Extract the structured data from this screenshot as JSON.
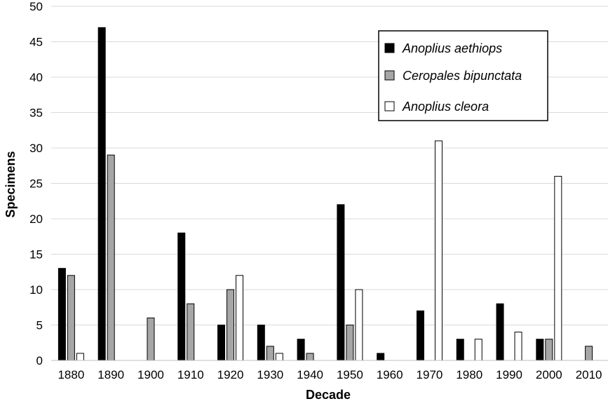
{
  "chart_data": {
    "type": "bar",
    "title": "",
    "xlabel": "Decade",
    "ylabel": "Specimens",
    "ylim": [
      0,
      50
    ],
    "yticks": [
      "0",
      "5",
      "10",
      "15",
      "20",
      "25",
      "30",
      "35",
      "40",
      "45",
      "50"
    ],
    "grid": "horizontal",
    "legend_position": "top-right",
    "categories": [
      "1880",
      "1890",
      "1900",
      "1910",
      "1920",
      "1930",
      "1940",
      "1950",
      "1960",
      "1970",
      "1980",
      "1990",
      "2000",
      "2010"
    ],
    "series": [
      {
        "name": "Anoplius aethiops",
        "color": "#000000",
        "values": [
          13,
          47,
          0,
          18,
          5,
          5,
          3,
          22,
          1,
          7,
          3,
          8,
          3,
          0
        ]
      },
      {
        "name": "Ceropales bipunctata",
        "color": "#a6a6a6",
        "values": [
          12,
          29,
          6,
          8,
          10,
          2,
          1,
          5,
          0,
          0,
          0,
          0,
          3,
          2
        ]
      },
      {
        "name": "Anoplius cleora",
        "color": "#ffffff",
        "values": [
          1,
          0,
          0,
          0,
          12,
          1,
          0,
          10,
          0,
          31,
          3,
          4,
          26,
          0
        ]
      }
    ]
  }
}
